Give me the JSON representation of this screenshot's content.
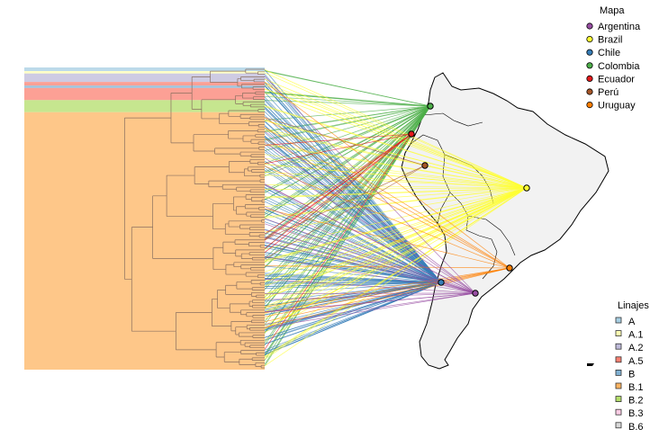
{
  "chart_data": {
    "type": "tanglegram",
    "left_panel": "dendrogram",
    "right_panel": "map",
    "map_region": "South America",
    "legends": [
      {
        "title": "Mapa",
        "placement": "top-right",
        "entries": [
          {
            "label": "Argentina",
            "color": "#984EA3"
          },
          {
            "label": "Brazil",
            "color": "#FFFF33"
          },
          {
            "label": "Chile",
            "color": "#377EB8"
          },
          {
            "label": "Colombia",
            "color": "#4DAF4A"
          },
          {
            "label": "Ecuador",
            "color": "#E41A1C"
          },
          {
            "label": "Perú",
            "color": "#A65628"
          },
          {
            "label": "Uruguay",
            "color": "#FF7F00"
          }
        ]
      },
      {
        "title": "Linajes",
        "placement": "bottom-right",
        "entries": [
          {
            "label": "A",
            "color": "#A6CEE3"
          },
          {
            "label": "A.1",
            "color": "#FFFFB3"
          },
          {
            "label": "A.2",
            "color": "#BEBADA"
          },
          {
            "label": "A.5",
            "color": "#FB8072"
          },
          {
            "label": "B",
            "color": "#80B1D3"
          },
          {
            "label": "B.1",
            "color": "#FDB462"
          },
          {
            "label": "B.2",
            "color": "#B3DE69"
          },
          {
            "label": "B.3",
            "color": "#FCCDE5"
          },
          {
            "label": "B.6",
            "color": "#D9D9D9"
          }
        ]
      }
    ],
    "lineage_bands": [
      {
        "lineage": "A",
        "share": 0.012,
        "color": "#A6CEE3"
      },
      {
        "lineage": "A.1",
        "share": 0.008,
        "color": "#FFFFB3"
      },
      {
        "lineage": "A.2",
        "share": 0.028,
        "color": "#BEBADA"
      },
      {
        "lineage": "A.5",
        "share": 0.012,
        "color": "#FB8072"
      },
      {
        "lineage": "B",
        "share": 0.008,
        "color": "#80B1D3"
      },
      {
        "lineage": "A.5",
        "share": 0.04,
        "color": "#FB8072"
      },
      {
        "lineage": "B.2",
        "share": 0.04,
        "color": "#B3DE69"
      },
      {
        "lineage": "B.1",
        "share": 0.852,
        "color": "#FDB462"
      }
    ],
    "country_links": [
      {
        "country": "Colombia",
        "links": 55,
        "color": "#4DAF4A"
      },
      {
        "country": "Chile",
        "links": 110,
        "color": "#377EB8"
      },
      {
        "country": "Brazil",
        "links": 60,
        "color": "#FFFF33"
      },
      {
        "country": "Uruguay",
        "links": 12,
        "color": "#FF7F00"
      },
      {
        "country": "Argentina",
        "links": 20,
        "color": "#984EA3"
      },
      {
        "country": "Ecuador",
        "links": 8,
        "color": "#E41A1C"
      },
      {
        "country": "Perú",
        "links": 3,
        "color": "#A65628"
      }
    ]
  }
}
